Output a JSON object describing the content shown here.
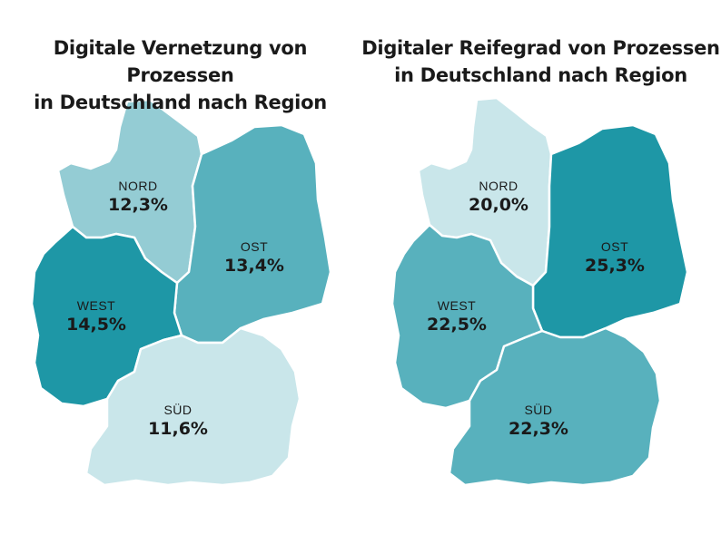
{
  "maps": [
    {
      "title_line1": "Digitale Vernetzung von Prozessen",
      "title_line2": "in Deutschland nach Region",
      "regions": [
        {
          "name": "NORD",
          "value": "12,3%",
          "color": "#94ccd4"
        },
        {
          "name": "OST",
          "value": "13,4%",
          "color": "#58b1bd"
        },
        {
          "name": "WEST",
          "value": "14,5%",
          "color": "#1e97a6"
        },
        {
          "name": "SÜD",
          "value": "11,6%",
          "color": "#c9e6ea"
        }
      ]
    },
    {
      "title_line1": "Digitaler Reifegrad von Prozessen",
      "title_line2": "in Deutschland nach Region",
      "regions": [
        {
          "name": "NORD",
          "value": "20,0%",
          "color": "#c9e6ea"
        },
        {
          "name": "OST",
          "value": "25,3%",
          "color": "#1e97a6"
        },
        {
          "name": "WEST",
          "value": "22,5%",
          "color": "#58b1bd"
        },
        {
          "name": "SÜD",
          "value": "22,3%",
          "color": "#58b1bd"
        }
      ]
    }
  ]
}
